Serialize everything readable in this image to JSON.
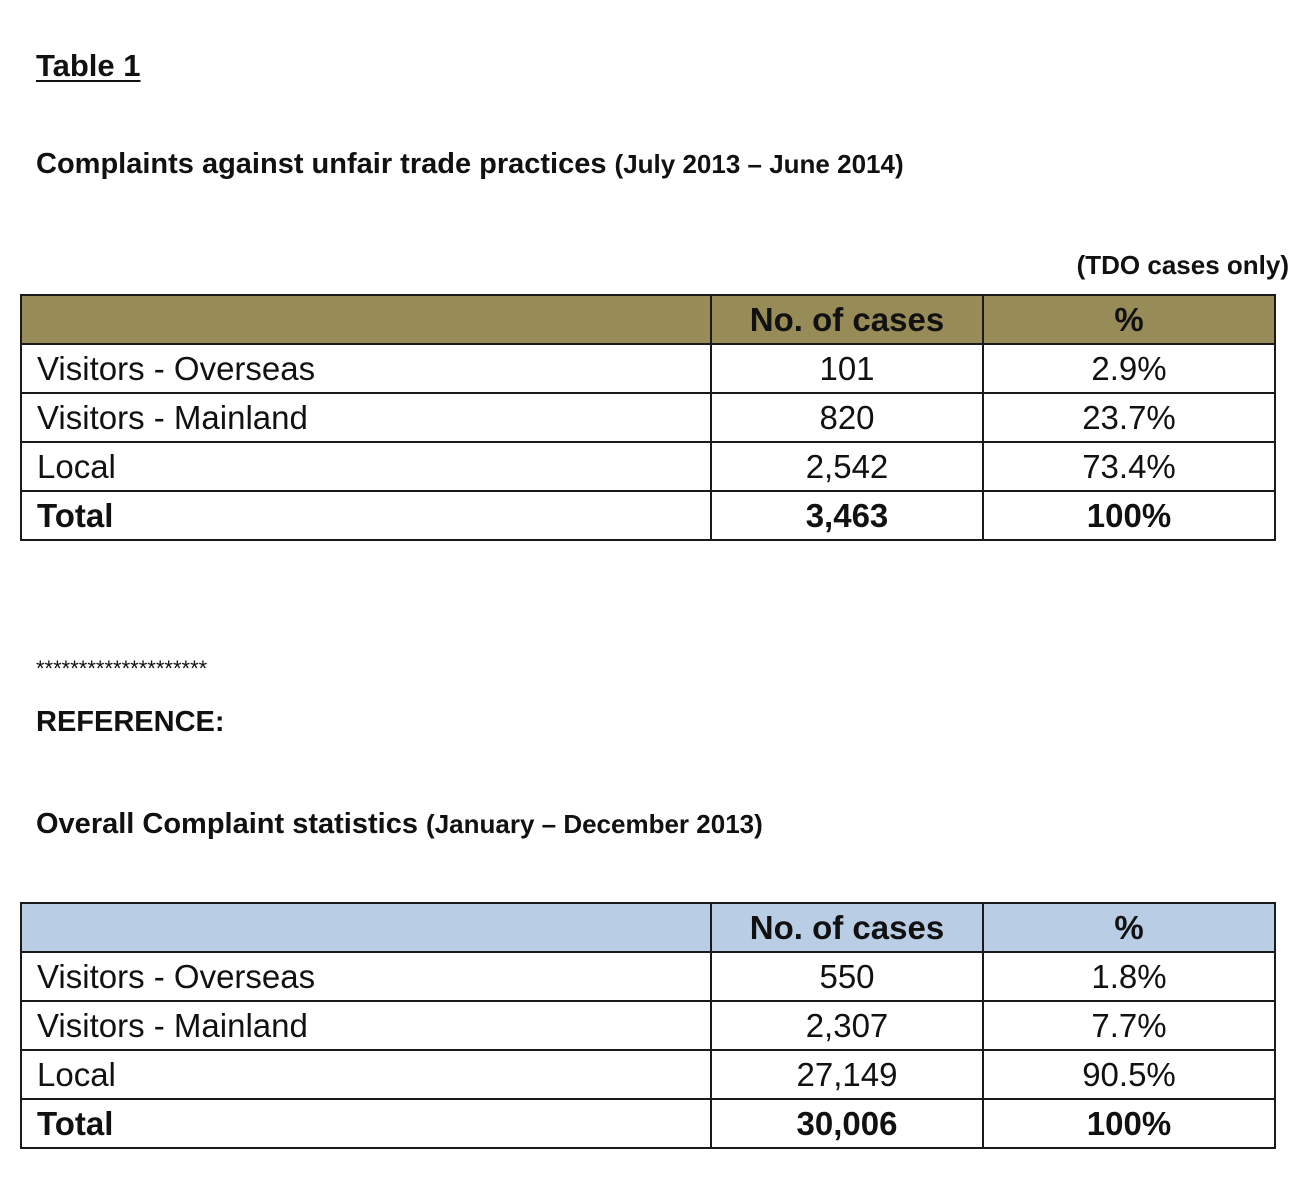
{
  "title": "Table 1",
  "table1": {
    "heading": "Complaints against unfair trade practices",
    "period": "(July 2013 – June 2014)",
    "note": "(TDO cases only)",
    "header_color": "#978b57",
    "columns": [
      "",
      "No. of cases",
      "%"
    ],
    "rows": [
      {
        "label": "Visitors - Overseas",
        "cases": "101",
        "pct": "2.9%"
      },
      {
        "label": "Visitors - Mainland",
        "cases": "820",
        "pct": "23.7%"
      },
      {
        "label": "Local",
        "cases": "2,542",
        "pct": "73.4%"
      }
    ],
    "total": {
      "label": "Total",
      "cases": "3,463",
      "pct": "100%"
    }
  },
  "divider": "********************",
  "reference_label": "REFERENCE:",
  "table2": {
    "heading": "Overall Complaint statistics",
    "period": "(January – December 2013)",
    "header_color": "#b9cde4",
    "columns": [
      "",
      "No. of cases",
      "%"
    ],
    "rows": [
      {
        "label": "Visitors - Overseas",
        "cases": "550",
        "pct": "1.8%"
      },
      {
        "label": "Visitors - Mainland",
        "cases": "2,307",
        "pct": "7.7%"
      },
      {
        "label": "Local",
        "cases": "27,149",
        "pct": "90.5%"
      }
    ],
    "total": {
      "label": "Total",
      "cases": "30,006",
      "pct": "100%"
    }
  }
}
